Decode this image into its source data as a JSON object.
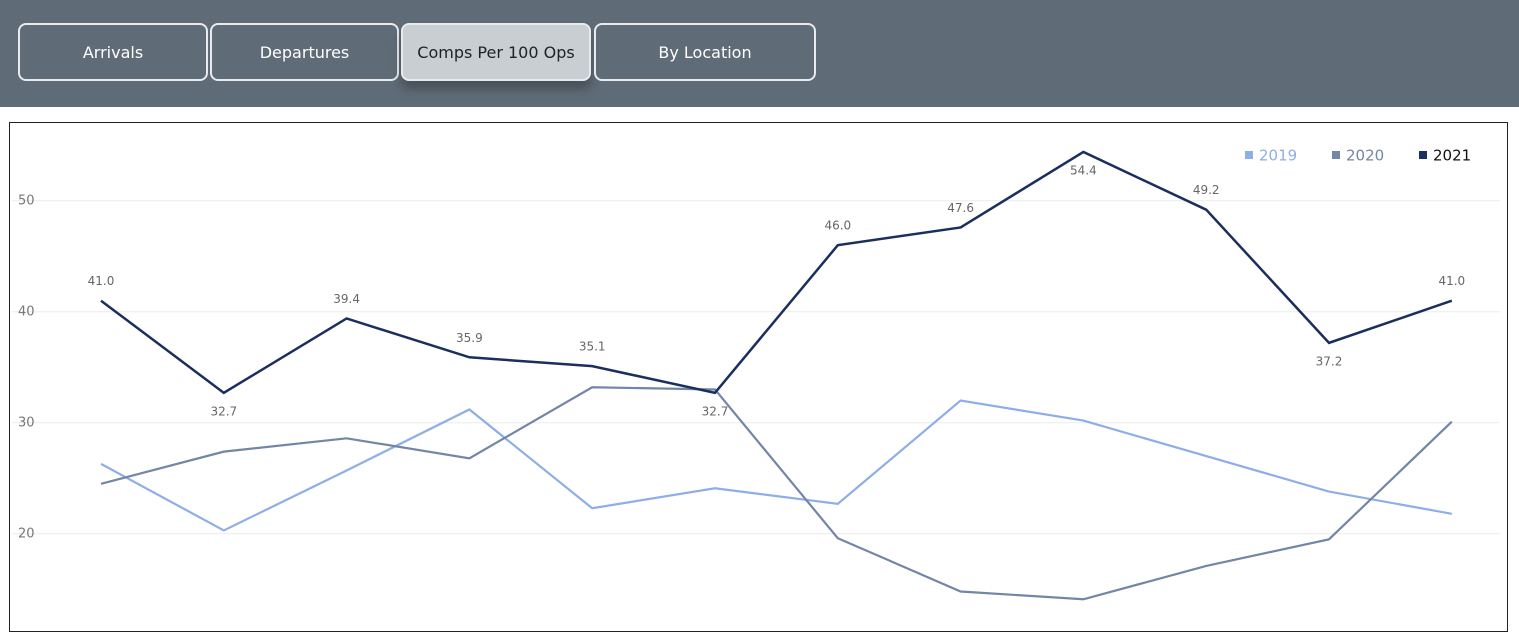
{
  "tabs": [
    "Arrivals",
    "Departures",
    "Comps Per 100 Ops",
    "By Location"
  ],
  "active_tab": 2,
  "chart_data": {
    "type": "line",
    "ylim": [
      11.6,
      57.1
    ],
    "yticks": [
      20,
      30,
      40,
      50
    ],
    "grid": true,
    "legend": "top-right",
    "series": [
      {
        "name": "2019",
        "color": "#8eaee8",
        "values": [
          26.3,
          20.3,
          25.7,
          31.2,
          22.3,
          24.1,
          22.7,
          32.0,
          30.2,
          27.0,
          23.8,
          21.8
        ]
      },
      {
        "name": "2020",
        "color": "#7386a6",
        "values": [
          24.5,
          27.4,
          28.6,
          26.8,
          33.2,
          33.0,
          19.6,
          14.8,
          14.1,
          17.1,
          19.5,
          30.1
        ]
      },
      {
        "name": "2021",
        "color": "#1b2f5e",
        "values": [
          41.0,
          32.7,
          39.4,
          35.9,
          35.1,
          32.7,
          46.0,
          47.6,
          54.4,
          49.2,
          37.2,
          41.0
        ],
        "value_labels": [
          "41.0",
          "32.7",
          "39.4",
          "35.9",
          "35.1",
          "32.7",
          "46.0",
          "47.6",
          "54.4",
          "49.2",
          "37.2",
          "41.0"
        ]
      }
    ]
  }
}
